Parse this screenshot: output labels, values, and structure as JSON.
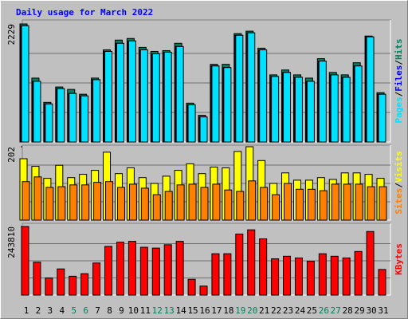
{
  "chart_data": [
    {
      "type": "bar",
      "title": "Daily usage for March 2022",
      "ylim": [
        0,
        2229
      ],
      "yticks": [
        2229
      ],
      "legend_separator": "/",
      "series": [
        {
          "name": "Hits",
          "color": "#00805c",
          "values": [
            2229,
            1206,
            748,
            1038,
            992,
            901,
            1206,
            1740,
            1924,
            1954,
            1786,
            1710,
            1725,
            1863,
            733,
            504,
            1466,
            1466,
            2046,
            2092,
            1771,
            1267,
            1359,
            1267,
            1206,
            1573,
            1313,
            1267,
            1496,
            2000,
            931
          ]
        },
        {
          "name": "Files",
          "color": "#0000ff",
          "values": [
            2195,
            1145,
            718,
            1008,
            916,
            870,
            1176,
            1710,
            1863,
            1908,
            1740,
            1664,
            1695,
            1802,
            702,
            473,
            1435,
            1405,
            2015,
            2061,
            1740,
            1237,
            1313,
            1221,
            1145,
            1527,
            1267,
            1221,
            1435,
            1985,
            901
          ]
        },
        {
          "name": "Pages",
          "color": "#00e0ff",
          "values": [
            2195,
            1145,
            718,
            1008,
            916,
            870,
            1176,
            1710,
            1863,
            1908,
            1740,
            1664,
            1695,
            1802,
            702,
            473,
            1435,
            1405,
            2015,
            2061,
            1740,
            1237,
            1313,
            1221,
            1145,
            1527,
            1267,
            1221,
            1435,
            1985,
            901
          ]
        }
      ]
    },
    {
      "type": "bar",
      "ylim": [
        0,
        202
      ],
      "yticks": [
        202
      ],
      "legend_separator": "/",
      "series": [
        {
          "name": "Visits",
          "color": "#ffff00",
          "values": [
            169,
            148,
            115,
            151,
            117,
            126,
            137,
            187,
            128,
            144,
            117,
            101,
            121,
            137,
            155,
            128,
            146,
            144,
            189,
            202,
            164,
            101,
            130,
            110,
            110,
            117,
            112,
            130,
            130,
            126,
            115
          ]
        },
        {
          "name": "Sites",
          "color": "#ff8000",
          "values": [
            106,
            119,
            90,
            92,
            97,
            97,
            104,
            106,
            90,
            99,
            88,
            70,
            79,
            97,
            99,
            90,
            99,
            83,
            79,
            108,
            90,
            70,
            101,
            85,
            85,
            81,
            99,
            99,
            99,
            92,
            92
          ]
        }
      ]
    },
    {
      "type": "bar",
      "ylim": [
        0,
        243810
      ],
      "yticks": [
        243810
      ],
      "categories": [
        "1",
        "2",
        "3",
        "4",
        "5",
        "6",
        "7",
        "8",
        "9",
        "10",
        "11",
        "12",
        "13",
        "14",
        "15",
        "16",
        "17",
        "18",
        "19",
        "20",
        "21",
        "22",
        "23",
        "24",
        "25",
        "26",
        "27",
        "28",
        "29",
        "30",
        "31"
      ],
      "highlight": [
        4,
        5,
        11,
        12,
        18,
        19,
        25,
        26
      ],
      "highlight_color": "#00805c",
      "series": [
        {
          "name": "KBytes",
          "color": "#ff0000",
          "values": [
            243810,
            117000,
            61000,
            93000,
            67000,
            76000,
            114000,
            173000,
            188000,
            191000,
            170000,
            167000,
            179000,
            191000,
            56000,
            32000,
            147000,
            147000,
            217000,
            232000,
            200000,
            129000,
            138000,
            132000,
            120000,
            147000,
            138000,
            132000,
            155000,
            226000,
            91000
          ]
        }
      ]
    }
  ]
}
